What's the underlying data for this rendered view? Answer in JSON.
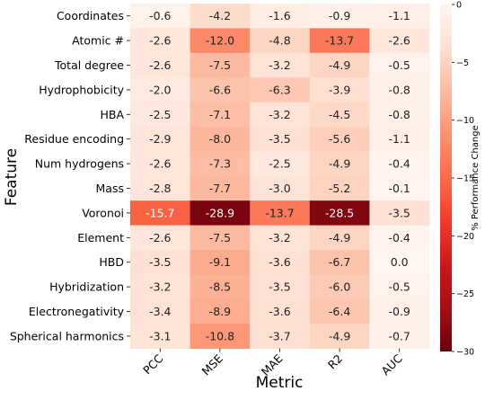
{
  "chart_data": {
    "type": "heatmap",
    "xlabel": "Metric",
    "ylabel": "Feature",
    "columns": [
      "PCC",
      "MSE",
      "MAE",
      "R2",
      "AUC"
    ],
    "rows": [
      "Coordinates",
      "Atomic #",
      "Total degree",
      "Hydrophobicity",
      "HBA",
      "Residue encoding",
      "Num hydrogens",
      "Mass",
      "Voronoi",
      "Element",
      "HBD",
      "Hybridization",
      "Electronegativity",
      "Spherical harmonics"
    ],
    "values": [
      [
        -0.6,
        -4.2,
        -1.6,
        -0.9,
        -1.1
      ],
      [
        -2.6,
        -12.0,
        -4.8,
        -13.7,
        -2.6
      ],
      [
        -2.6,
        -7.5,
        -3.2,
        -4.9,
        -0.5
      ],
      [
        -2.0,
        -6.6,
        -6.3,
        -3.9,
        -0.8
      ],
      [
        -2.5,
        -7.1,
        -3.2,
        -4.5,
        -0.8
      ],
      [
        -2.9,
        -8.0,
        -3.5,
        -5.6,
        -1.1
      ],
      [
        -2.6,
        -7.3,
        -2.5,
        -4.9,
        -0.4
      ],
      [
        -2.8,
        -7.7,
        -3.0,
        -5.2,
        -0.1
      ],
      [
        -15.7,
        -28.9,
        -13.7,
        -28.5,
        -3.5
      ],
      [
        -2.6,
        -7.5,
        -3.2,
        -4.9,
        -0.4
      ],
      [
        -3.5,
        -9.1,
        -3.6,
        -6.7,
        0.0
      ],
      [
        -3.2,
        -8.5,
        -3.5,
        -6.0,
        -0.5
      ],
      [
        -3.4,
        -8.9,
        -3.6,
        -6.4,
        -0.9
      ],
      [
        -3.1,
        -10.8,
        -3.7,
        -4.9,
        -0.7
      ]
    ],
    "value_labels": [
      [
        "-0.6",
        "-4.2",
        "-1.6",
        "-0.9",
        "-1.1"
      ],
      [
        "-2.6",
        "-12.0",
        "-4.8",
        "-13.7",
        "-2.6"
      ],
      [
        "-2.6",
        "-7.5",
        "-3.2",
        "-4.9",
        "-0.5"
      ],
      [
        "-2.0",
        "-6.6",
        "-6.3",
        "-3.9",
        "-0.8"
      ],
      [
        "-2.5",
        "-7.1",
        "-3.2",
        "-4.5",
        "-0.8"
      ],
      [
        "-2.9",
        "-8.0",
        "-3.5",
        "-5.6",
        "-1.1"
      ],
      [
        "-2.6",
        "-7.3",
        "-2.5",
        "-4.9",
        "-0.4"
      ],
      [
        "-2.8",
        "-7.7",
        "-3.0",
        "-5.2",
        "-0.1"
      ],
      [
        "-15.7",
        "-28.9",
        "-13.7",
        "-28.5",
        "-3.5"
      ],
      [
        "-2.6",
        "-7.5",
        "-3.2",
        "-4.9",
        "-0.4"
      ],
      [
        "-3.5",
        "-9.1",
        "-3.6",
        "-6.7",
        "0.0"
      ],
      [
        "-3.2",
        "-8.5",
        "-3.5",
        "-6.0",
        "-0.5"
      ],
      [
        "-3.4",
        "-8.9",
        "-3.6",
        "-6.4",
        "-0.9"
      ],
      [
        "-3.1",
        "-10.8",
        "-3.7",
        "-4.9",
        "-0.7"
      ]
    ],
    "colorbar": {
      "label": "% Performance Change",
      "range": [
        -30,
        0
      ],
      "ticks": [
        0,
        -5,
        -10,
        -15,
        -20,
        -25,
        -30
      ],
      "tick_labels": [
        "0",
        "−5",
        "−10",
        "−15",
        "−20",
        "−25",
        "−30"
      ],
      "placement": "right"
    },
    "colormap": [
      "#fff5f0",
      "#fee0d2",
      "#fcbba1",
      "#fc9272",
      "#fb6a4a",
      "#ef3b2c",
      "#cb181d",
      "#a50f15",
      "#67000d"
    ]
  }
}
